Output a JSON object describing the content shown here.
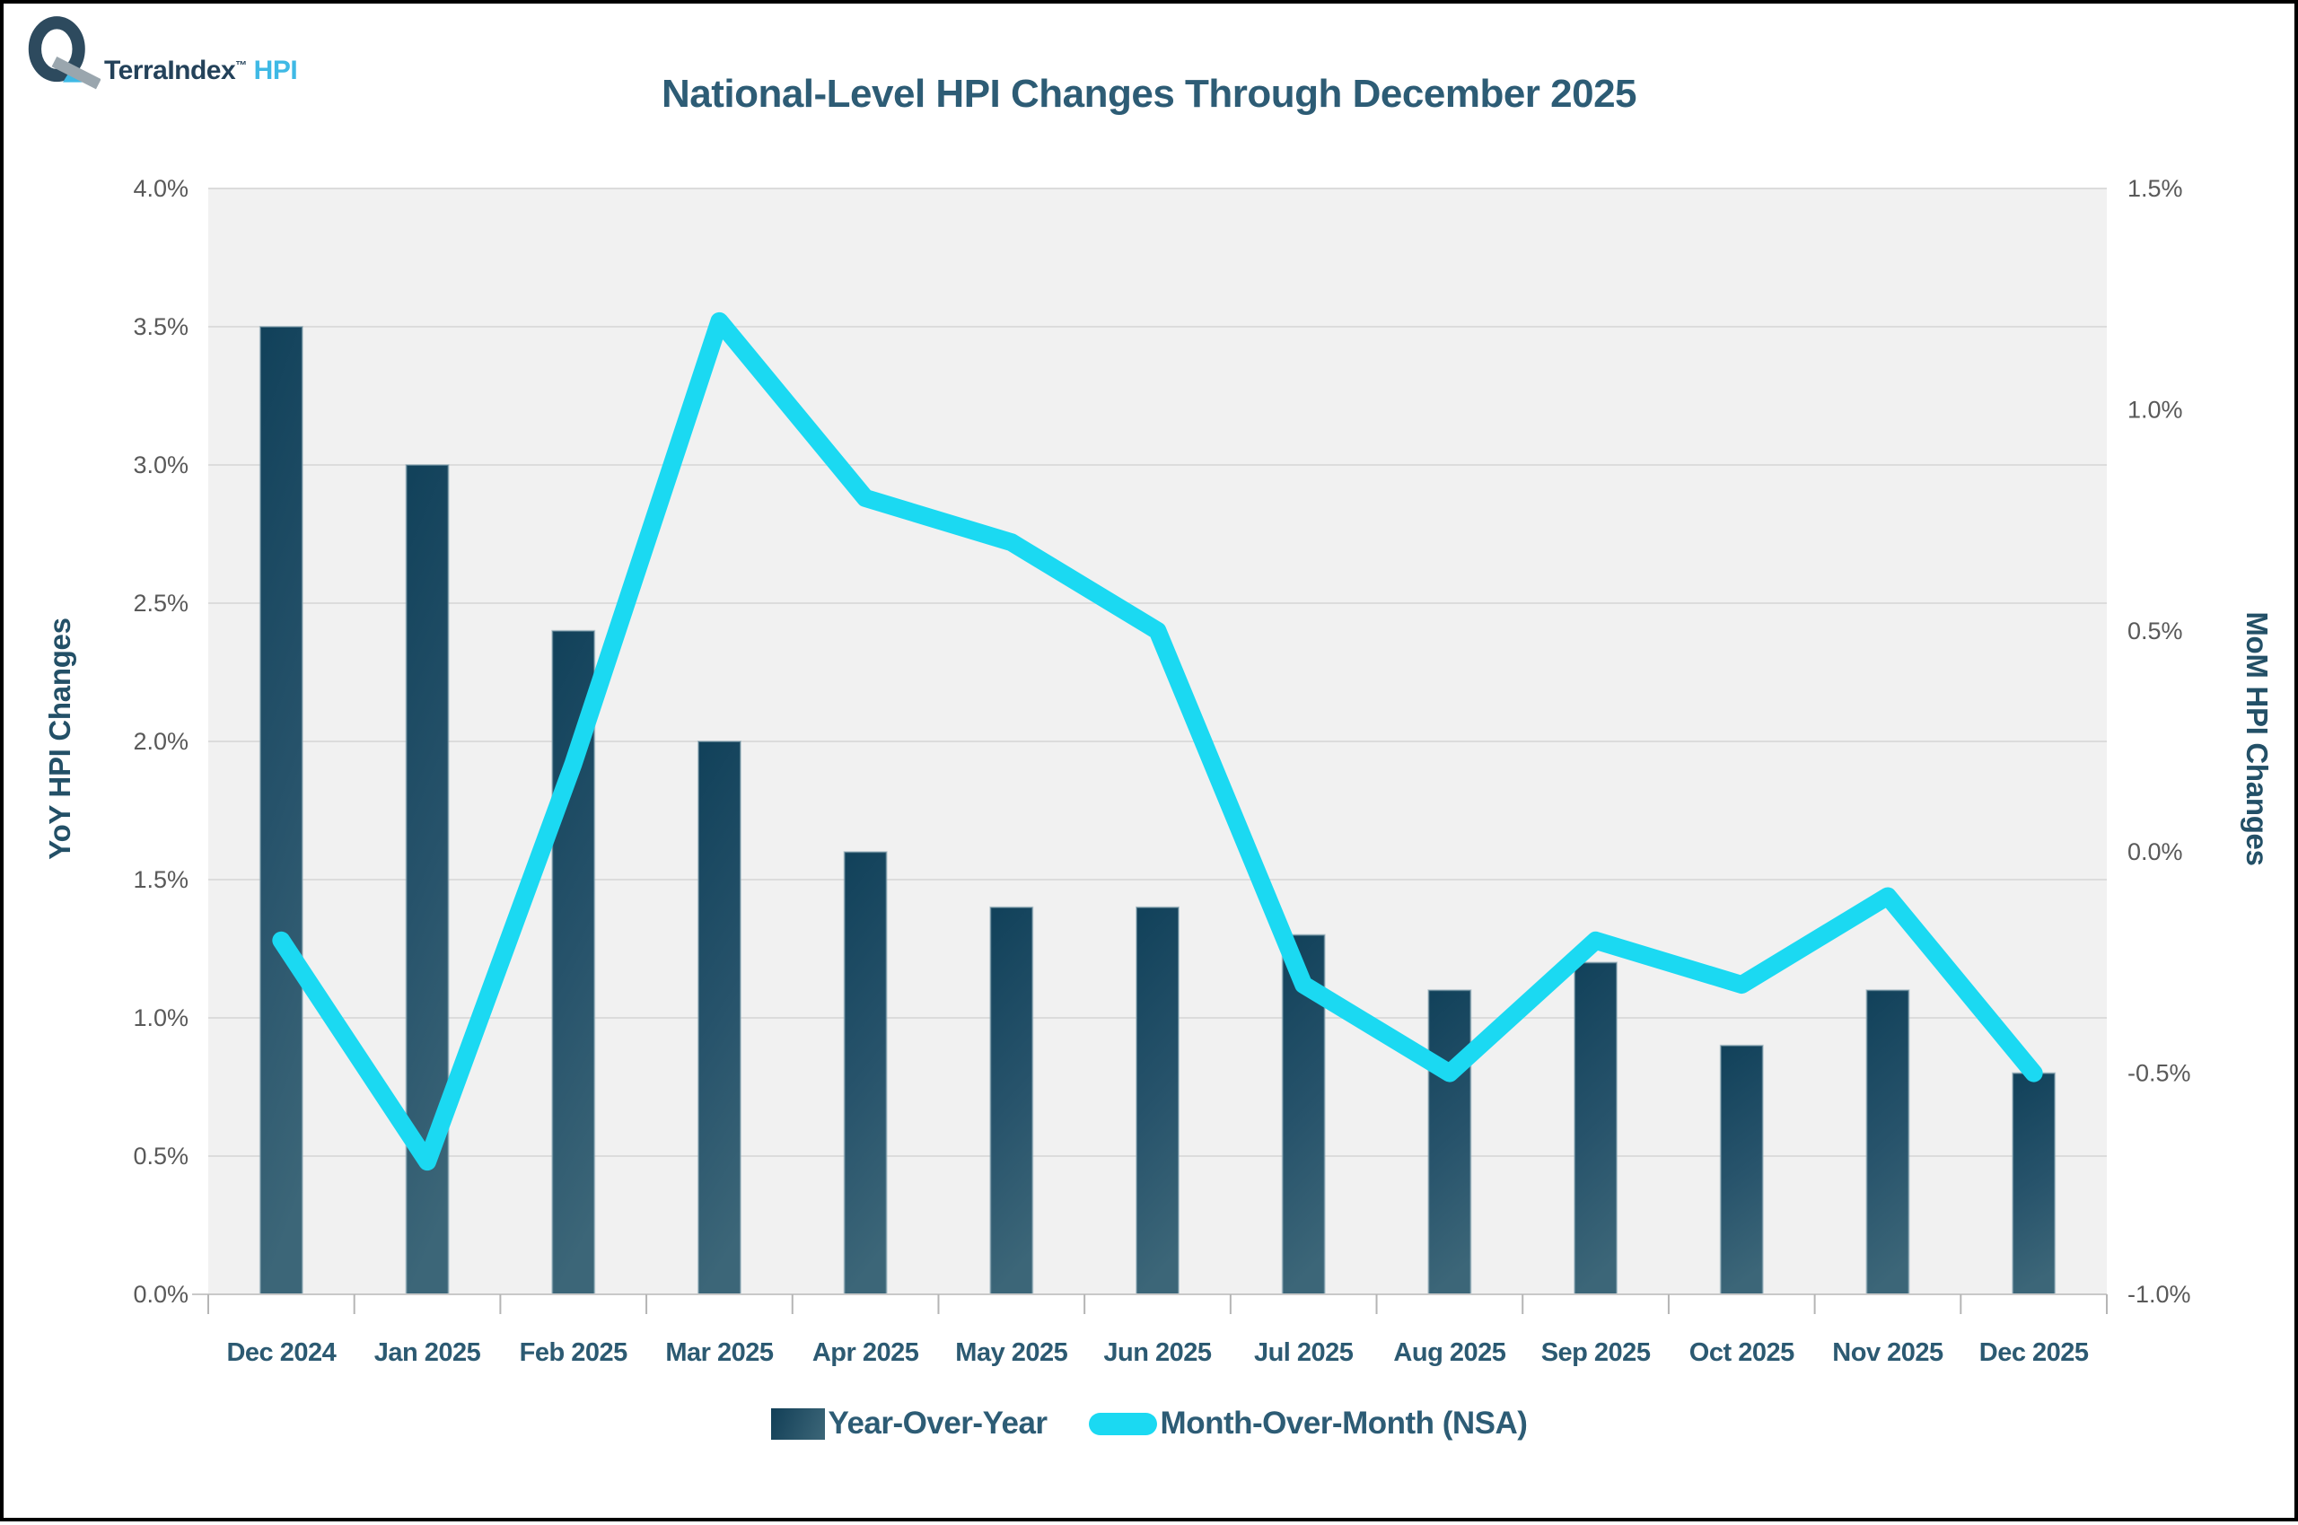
{
  "logo": {
    "brand": "TerraIndex",
    "trademark": "™",
    "product": "HPI"
  },
  "title": "National-Level HPI Changes Through December 2025",
  "chart_data": {
    "type": "bar",
    "subtype": "combo-bar-line-dual-axis",
    "title": "National-Level HPI Changes Through December 2025",
    "categories": [
      "Dec 2024",
      "Jan 2025",
      "Feb 2025",
      "Mar 2025",
      "Apr 2025",
      "May 2025",
      "Jun 2025",
      "Jul 2025",
      "Aug 2025",
      "Sep 2025",
      "Oct 2025",
      "Nov 2025",
      "Dec 2025"
    ],
    "series": [
      {
        "name": "Year-Over-Year",
        "type": "bar",
        "axis": "left",
        "unit": "%",
        "color_top": "#11415a",
        "color_bottom": "#3c6678",
        "values": [
          3.5,
          3.0,
          2.4,
          2.0,
          1.6,
          1.4,
          1.4,
          1.3,
          1.1,
          1.2,
          0.9,
          1.1,
          0.8
        ]
      },
      {
        "name": "Month-Over-Month (NSA)",
        "type": "line",
        "axis": "right",
        "unit": "%",
        "color": "#1bd9f2",
        "values": [
          -0.2,
          -0.7,
          0.2,
          1.2,
          0.8,
          0.7,
          0.5,
          -0.3,
          -0.5,
          -0.2,
          -0.3,
          -0.1,
          -0.5
        ]
      }
    ],
    "left_axis": {
      "label": "YoY HPI Changes",
      "min": 0.0,
      "max": 4.0,
      "step": 0.5,
      "ticks": [
        "0.0%",
        "0.5%",
        "1.0%",
        "1.5%",
        "2.0%",
        "2.5%",
        "3.0%",
        "3.5%",
        "4.0%"
      ]
    },
    "right_axis": {
      "label": "MoM HPI Changes",
      "min": -1.0,
      "max": 1.5,
      "step": 0.5,
      "ticks": [
        "-1.0%",
        "-0.5%",
        "0.0%",
        "0.5%",
        "1.0%",
        "1.5%"
      ]
    },
    "legend_position": "bottom",
    "grid": true,
    "colors": {
      "plot_background": "#f1f1f1",
      "gridline": "#dcdcdc",
      "axis_line": "#c9c9c9",
      "tick_mark": "#b5b5b5",
      "tick_label": "#595959",
      "category_label": "#2c5a72",
      "title_text": "#2d5c75",
      "logo_blue": "#3fb9e5",
      "logo_dark": "#2d4a5e"
    }
  }
}
